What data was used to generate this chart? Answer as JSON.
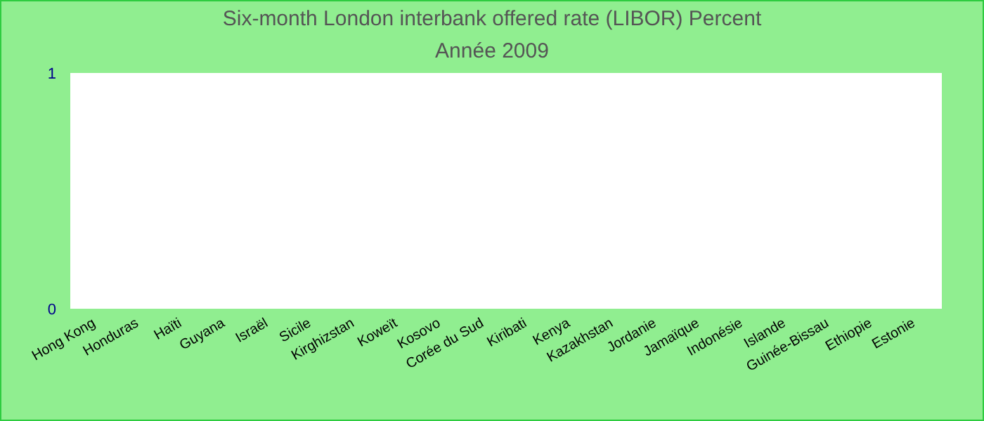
{
  "chart_data": {
    "type": "bar",
    "title": "Six-month London interbank offered rate (LIBOR)  Percent",
    "subtitle": "Année 2009",
    "categories": [
      "Hong Kong",
      "Honduras",
      "Haïti",
      "Guyana",
      "Israël",
      "Sicile",
      "Kirghizstan",
      "Koweït",
      "Kosovo",
      "Corée du Sud",
      "Kiribati",
      "Kenya",
      "Kazakhstan",
      "Jordanie",
      "Jamaïque",
      "Indonésie",
      "Islande",
      "Guinée-Bissau",
      "Ethiopie",
      "Estonie"
    ],
    "values": [
      null,
      null,
      null,
      null,
      null,
      null,
      null,
      null,
      null,
      null,
      null,
      null,
      null,
      null,
      null,
      null,
      null,
      null,
      null,
      null
    ],
    "ylim": [
      0,
      1
    ],
    "yticks": [
      0,
      1
    ],
    "grid": false
  }
}
